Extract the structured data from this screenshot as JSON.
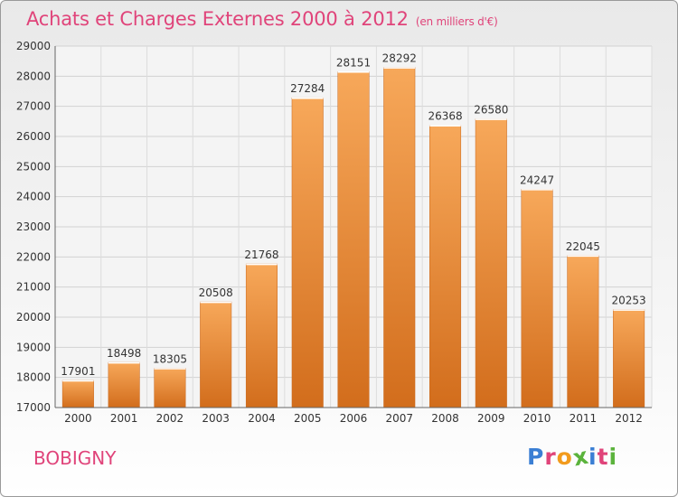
{
  "header": {
    "title": "Achats et Charges Externes 2000 à 2012",
    "unit": "(en milliers d'€)"
  },
  "footer": {
    "town": "BOBIGNY",
    "logo_text": "Proxiti",
    "logo_colors": [
      "#3b7fd4",
      "#e0447a",
      "#f29b1d",
      "#5bb33c",
      "#3b7fd4",
      "#e0447a",
      "#5bb33c"
    ]
  },
  "colors": {
    "accent": "#e0447a",
    "bar_top": "#f7a85a",
    "bar_bottom": "#d26d1c"
  },
  "chart_data": {
    "type": "bar",
    "title": "Achats et Charges Externes 2000 à 2012",
    "xlabel": "",
    "ylabel": "",
    "categories": [
      "2000",
      "2001",
      "2002",
      "2003",
      "2004",
      "2005",
      "2006",
      "2007",
      "2008",
      "2009",
      "2010",
      "2011",
      "2012"
    ],
    "values": [
      17901,
      18498,
      18305,
      20508,
      21768,
      27284,
      28151,
      28292,
      26368,
      26580,
      24247,
      22045,
      20253
    ],
    "ylim": [
      17000,
      29000
    ],
    "yticks": [
      17000,
      18000,
      19000,
      20000,
      21000,
      22000,
      23000,
      24000,
      25000,
      26000,
      27000,
      28000,
      29000
    ],
    "grid": true,
    "data_labels": true
  }
}
